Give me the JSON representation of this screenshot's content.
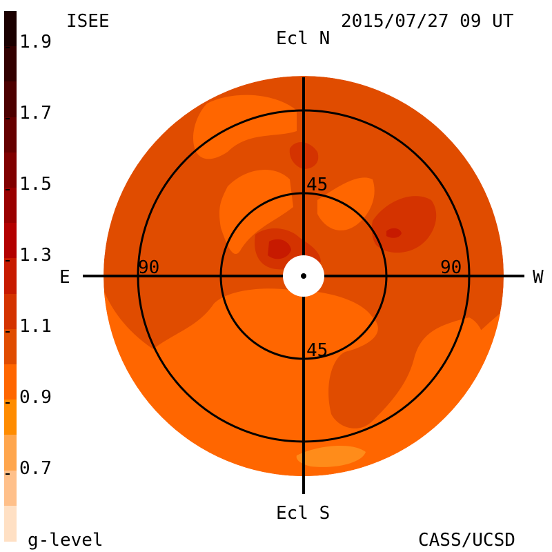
{
  "header": {
    "source_label": "ISEE",
    "timestamp": "2015/07/27 09 UT"
  },
  "footer": {
    "unit_label": "g-level",
    "credit": "CASS/UCSD"
  },
  "colorbar": {
    "labels": [
      "1.9",
      "1.7",
      "1.5",
      "1.3",
      "1.1",
      "0.9",
      "0.7"
    ],
    "colors": [
      "#1a0000",
      "#330000",
      "#4d0000",
      "#660000",
      "#800000",
      "#990000",
      "#b30000",
      "#c71a00",
      "#d43300",
      "#e04c00",
      "#ff6600",
      "#ff8c00",
      "#ffa64d",
      "#ffc08a",
      "#ffe0c4"
    ]
  },
  "map": {
    "axes": {
      "north": "Ecl N",
      "south": "Ecl S",
      "east": "E",
      "west": "W"
    },
    "ring_labels": {
      "inner_top": "45",
      "inner_bottom": "45",
      "outer_left": "90",
      "outer_right": "90"
    },
    "colors": {
      "base": "#e04c00",
      "light": "#ff6600",
      "lighter": "#ff8c1a",
      "dark": "#d43300",
      "darker": "#c71a00",
      "darkest": "#b30000"
    }
  }
}
